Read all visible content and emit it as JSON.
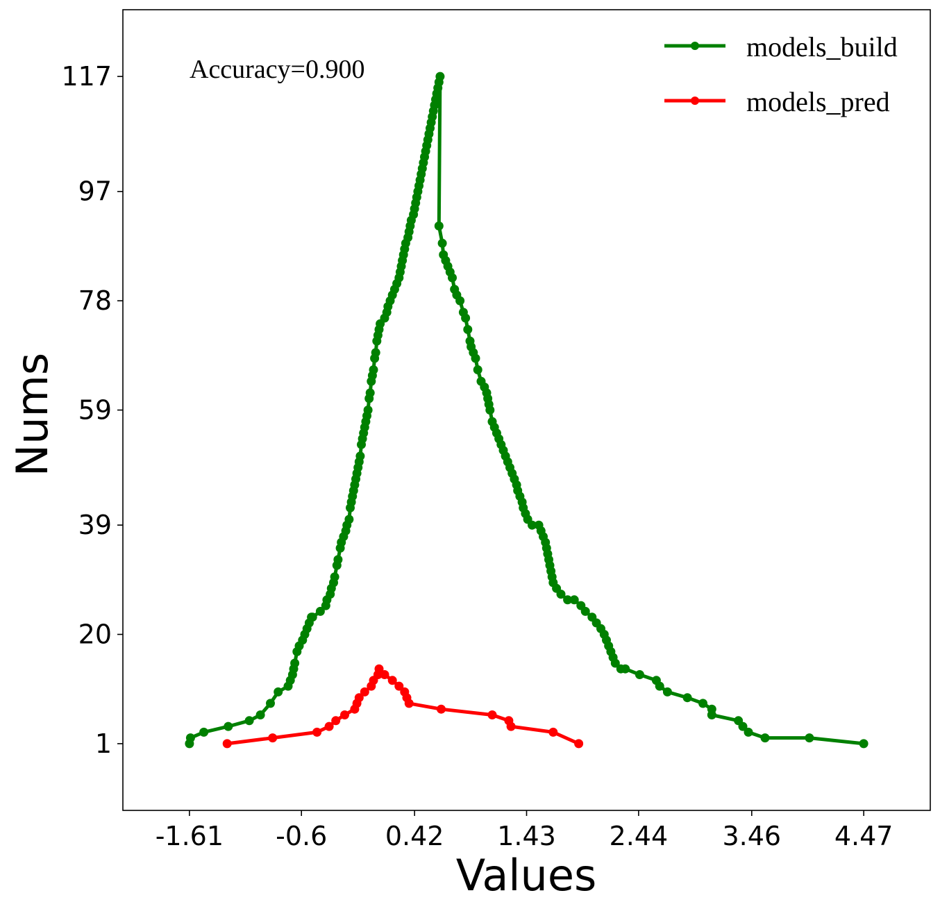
{
  "chart_data": {
    "type": "line",
    "xlabel": "Values",
    "ylabel": "Nums",
    "xticks": [
      "-1.61",
      "-0.6",
      "0.42",
      "1.43",
      "2.44",
      "3.46",
      "4.47"
    ],
    "yticks": [
      "1",
      "20",
      "39",
      "59",
      "78",
      "97",
      "117"
    ],
    "xlim": [
      -2.21,
      5.07
    ],
    "ylim": [
      -10.6,
      128.6
    ],
    "annotation": "Accuracy=0.900",
    "legend": {
      "position": "top-right",
      "entries": [
        "models_build",
        "models_pred"
      ]
    },
    "grid": false,
    "series": [
      {
        "name": "models_build",
        "color": "#008000",
        "marker": "circle",
        "points": [
          [
            -1.61,
            1
          ],
          [
            -1.6,
            2
          ],
          [
            -1.48,
            3
          ],
          [
            -1.26,
            4
          ],
          [
            -1.07,
            5
          ],
          [
            -0.97,
            6
          ],
          [
            -0.88,
            8
          ],
          [
            -0.81,
            10
          ],
          [
            -0.72,
            11
          ],
          [
            -0.7,
            12
          ],
          [
            -0.68,
            13
          ],
          [
            -0.67,
            14
          ],
          [
            -0.66,
            15
          ],
          [
            -0.64,
            17
          ],
          [
            -0.62,
            18
          ],
          [
            -0.59,
            19
          ],
          [
            -0.57,
            20
          ],
          [
            -0.55,
            21
          ],
          [
            -0.53,
            22
          ],
          [
            -0.51,
            23
          ],
          [
            -0.5,
            23
          ],
          [
            -0.43,
            24
          ],
          [
            -0.38,
            25
          ],
          [
            -0.37,
            26
          ],
          [
            -0.34,
            27
          ],
          [
            -0.33,
            28
          ],
          [
            -0.31,
            29
          ],
          [
            -0.3,
            30
          ],
          [
            -0.28,
            32
          ],
          [
            -0.27,
            33
          ],
          [
            -0.25,
            35
          ],
          [
            -0.24,
            36
          ],
          [
            -0.22,
            37
          ],
          [
            -0.2,
            38
          ],
          [
            -0.19,
            39
          ],
          [
            -0.17,
            40
          ],
          [
            -0.16,
            42
          ],
          [
            -0.15,
            43
          ],
          [
            -0.14,
            44
          ],
          [
            -0.13,
            45
          ],
          [
            -0.12,
            46
          ],
          [
            -0.11,
            47
          ],
          [
            -0.1,
            48
          ],
          [
            -0.09,
            49
          ],
          [
            -0.08,
            50
          ],
          [
            -0.07,
            51
          ],
          [
            -0.06,
            53
          ],
          [
            -0.05,
            54
          ],
          [
            -0.04,
            55
          ],
          [
            -0.03,
            56
          ],
          [
            -0.02,
            57
          ],
          [
            -0.01,
            58
          ],
          [
            0.0,
            59
          ],
          [
            0.01,
            61
          ],
          [
            0.02,
            62
          ],
          [
            0.03,
            64
          ],
          [
            0.04,
            65
          ],
          [
            0.05,
            66
          ],
          [
            0.06,
            68
          ],
          [
            0.07,
            69
          ],
          [
            0.08,
            71
          ],
          [
            0.09,
            72
          ],
          [
            0.1,
            73
          ],
          [
            0.11,
            74
          ],
          [
            0.15,
            75
          ],
          [
            0.17,
            76
          ],
          [
            0.18,
            77
          ],
          [
            0.2,
            78
          ],
          [
            0.22,
            79
          ],
          [
            0.24,
            80
          ],
          [
            0.26,
            81
          ],
          [
            0.28,
            82
          ],
          [
            0.29,
            83
          ],
          [
            0.3,
            84
          ],
          [
            0.31,
            85
          ],
          [
            0.32,
            86
          ],
          [
            0.33,
            87
          ],
          [
            0.34,
            88
          ],
          [
            0.36,
            89
          ],
          [
            0.37,
            90
          ],
          [
            0.38,
            91
          ],
          [
            0.39,
            92
          ],
          [
            0.41,
            93
          ],
          [
            0.42,
            94
          ],
          [
            0.43,
            95
          ],
          [
            0.44,
            96
          ],
          [
            0.45,
            97
          ],
          [
            0.46,
            98
          ],
          [
            0.47,
            99
          ],
          [
            0.48,
            100
          ],
          [
            0.49,
            101
          ],
          [
            0.5,
            102
          ],
          [
            0.51,
            103
          ],
          [
            0.52,
            104
          ],
          [
            0.53,
            105
          ],
          [
            0.54,
            106
          ],
          [
            0.55,
            107
          ],
          [
            0.56,
            108
          ],
          [
            0.57,
            109
          ],
          [
            0.58,
            110
          ],
          [
            0.59,
            111
          ],
          [
            0.6,
            112
          ],
          [
            0.61,
            113
          ],
          [
            0.62,
            114
          ],
          [
            0.63,
            115
          ],
          [
            0.64,
            116
          ],
          [
            0.65,
            117
          ],
          [
            0.64,
            91
          ],
          [
            0.67,
            88
          ],
          [
            0.68,
            86
          ],
          [
            0.7,
            85
          ],
          [
            0.72,
            84
          ],
          [
            0.74,
            83
          ],
          [
            0.76,
            82
          ],
          [
            0.78,
            80
          ],
          [
            0.8,
            79
          ],
          [
            0.83,
            78
          ],
          [
            0.86,
            76
          ],
          [
            0.88,
            75
          ],
          [
            0.9,
            73
          ],
          [
            0.92,
            71
          ],
          [
            0.93,
            70
          ],
          [
            0.95,
            69
          ],
          [
            0.97,
            68
          ],
          [
            0.99,
            66
          ],
          [
            1.02,
            64
          ],
          [
            1.05,
            63
          ],
          [
            1.07,
            62
          ],
          [
            1.08,
            61
          ],
          [
            1.09,
            60
          ],
          [
            1.1,
            59
          ],
          [
            1.12,
            57
          ],
          [
            1.14,
            56
          ],
          [
            1.16,
            55
          ],
          [
            1.18,
            54
          ],
          [
            1.2,
            53
          ],
          [
            1.22,
            52
          ],
          [
            1.24,
            51
          ],
          [
            1.26,
            50
          ],
          [
            1.28,
            49
          ],
          [
            1.3,
            48
          ],
          [
            1.32,
            47
          ],
          [
            1.34,
            46
          ],
          [
            1.35,
            45
          ],
          [
            1.37,
            44
          ],
          [
            1.39,
            43
          ],
          [
            1.4,
            42
          ],
          [
            1.42,
            41
          ],
          [
            1.44,
            40
          ],
          [
            1.48,
            39
          ],
          [
            1.54,
            39
          ],
          [
            1.56,
            38
          ],
          [
            1.58,
            37
          ],
          [
            1.6,
            36
          ],
          [
            1.61,
            35
          ],
          [
            1.62,
            34
          ],
          [
            1.63,
            33
          ],
          [
            1.64,
            32
          ],
          [
            1.65,
            31
          ],
          [
            1.66,
            30
          ],
          [
            1.67,
            29
          ],
          [
            1.7,
            28
          ],
          [
            1.74,
            27
          ],
          [
            1.8,
            26
          ],
          [
            1.86,
            26
          ],
          [
            1.92,
            25
          ],
          [
            1.96,
            24
          ],
          [
            2.02,
            23
          ],
          [
            2.06,
            22
          ],
          [
            2.1,
            21
          ],
          [
            2.13,
            20
          ],
          [
            2.15,
            19
          ],
          [
            2.17,
            18
          ],
          [
            2.19,
            17
          ],
          [
            2.21,
            16
          ],
          [
            2.23,
            15
          ],
          [
            2.28,
            14
          ],
          [
            2.32,
            14
          ],
          [
            2.45,
            13
          ],
          [
            2.6,
            12
          ],
          [
            2.63,
            11
          ],
          [
            2.7,
            10
          ],
          [
            2.88,
            9
          ],
          [
            3.02,
            8
          ],
          [
            3.1,
            7
          ],
          [
            3.1,
            6
          ],
          [
            3.34,
            5
          ],
          [
            3.38,
            4
          ],
          [
            3.43,
            3
          ],
          [
            3.58,
            2
          ],
          [
            3.98,
            2
          ],
          [
            4.47,
            1
          ]
        ]
      },
      {
        "name": "models_pred",
        "color": "#ff0000",
        "marker": "circle",
        "points": [
          [
            -1.27,
            1
          ],
          [
            -0.86,
            2
          ],
          [
            -0.46,
            3
          ],
          [
            -0.35,
            4
          ],
          [
            -0.29,
            5
          ],
          [
            -0.21,
            6
          ],
          [
            -0.12,
            7
          ],
          [
            -0.1,
            8
          ],
          [
            -0.08,
            9
          ],
          [
            -0.03,
            10
          ],
          [
            0.03,
            11
          ],
          [
            0.05,
            12
          ],
          [
            0.09,
            13
          ],
          [
            0.1,
            14
          ],
          [
            0.15,
            13
          ],
          [
            0.22,
            12
          ],
          [
            0.28,
            11
          ],
          [
            0.33,
            10
          ],
          [
            0.35,
            9
          ],
          [
            0.37,
            8
          ],
          [
            0.66,
            7
          ],
          [
            1.12,
            6
          ],
          [
            1.27,
            5
          ],
          [
            1.29,
            4
          ],
          [
            1.67,
            3
          ],
          [
            1.9,
            1
          ]
        ]
      }
    ]
  }
}
